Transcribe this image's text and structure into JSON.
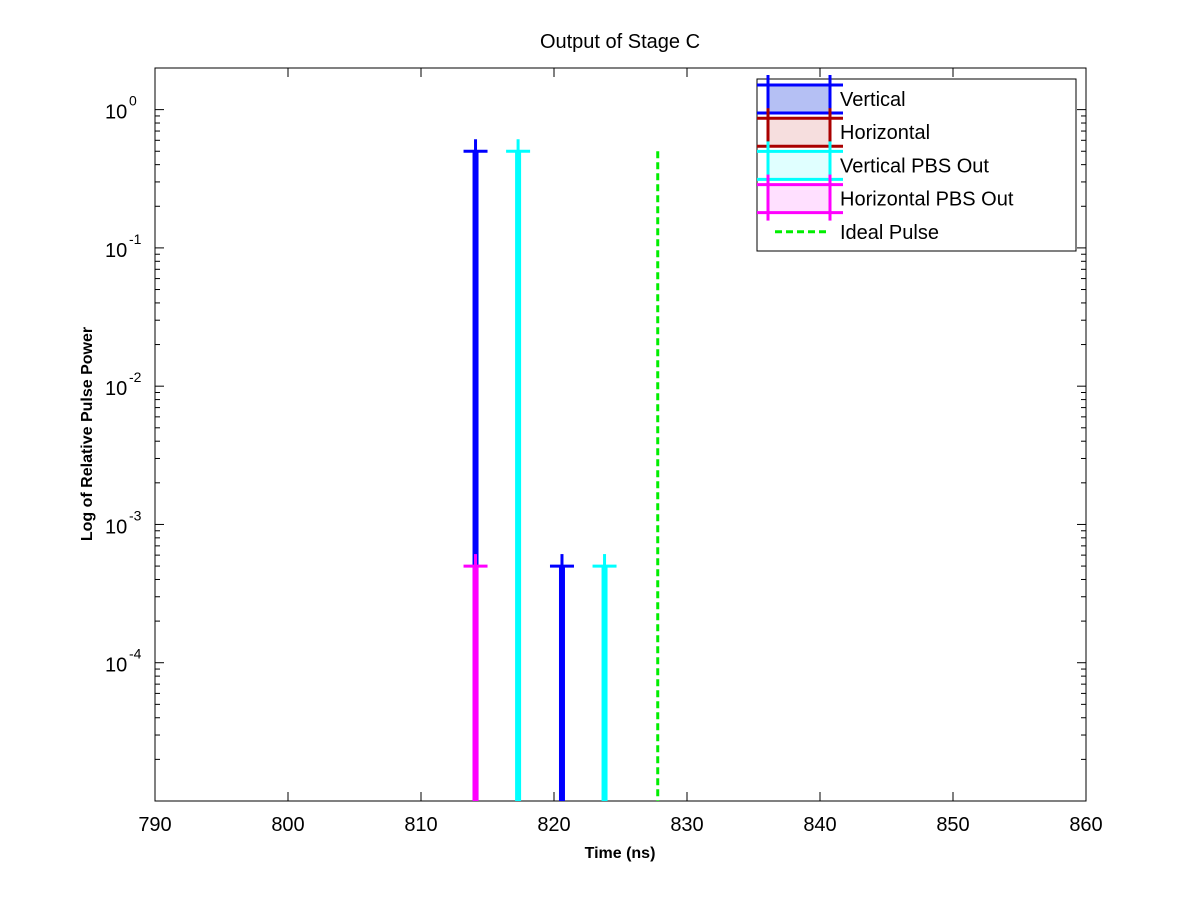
{
  "chart_data": {
    "type": "line",
    "title": "Output of Stage C",
    "xlabel": "Time (ns)",
    "ylabel": "Log of Relative Pulse Power",
    "xlim": [
      790,
      860
    ],
    "ylim": [
      1e-05,
      2
    ],
    "y_scale": "log",
    "x_ticks": [
      790,
      800,
      810,
      820,
      830,
      840,
      850,
      860
    ],
    "y_ticks": [
      {
        "value": 1,
        "base": "10",
        "exp": "0"
      },
      {
        "value": 0.1,
        "base": "10",
        "exp": "-1"
      },
      {
        "value": 0.01,
        "base": "10",
        "exp": "-2"
      },
      {
        "value": 0.001,
        "base": "10",
        "exp": "-3"
      },
      {
        "value": 0.0001,
        "base": "10",
        "exp": "-4"
      }
    ],
    "grid": false,
    "legend_position": "top-right",
    "series": [
      {
        "name": "Vertical",
        "color": "#0000ff",
        "style": "stem",
        "points": [
          {
            "x": 814.1,
            "y": 0.5
          },
          {
            "x": 820.6,
            "y": 0.0005
          }
        ]
      },
      {
        "name": "Horizontal",
        "color": "#aa0000",
        "style": "stem",
        "points": []
      },
      {
        "name": "Vertical PBS Out",
        "color": "#00ffff",
        "style": "stem",
        "points": [
          {
            "x": 817.3,
            "y": 0.5
          },
          {
            "x": 823.8,
            "y": 0.0005
          }
        ]
      },
      {
        "name": "Horizontal PBS Out",
        "color": "#ff00ff",
        "style": "stem",
        "points": [
          {
            "x": 814.1,
            "y": 0.0005
          }
        ]
      },
      {
        "name": "Ideal Pulse",
        "color": "#00ee00",
        "style": "dashed",
        "points": [
          {
            "x": 827.8,
            "y": 0.5
          }
        ]
      }
    ]
  }
}
